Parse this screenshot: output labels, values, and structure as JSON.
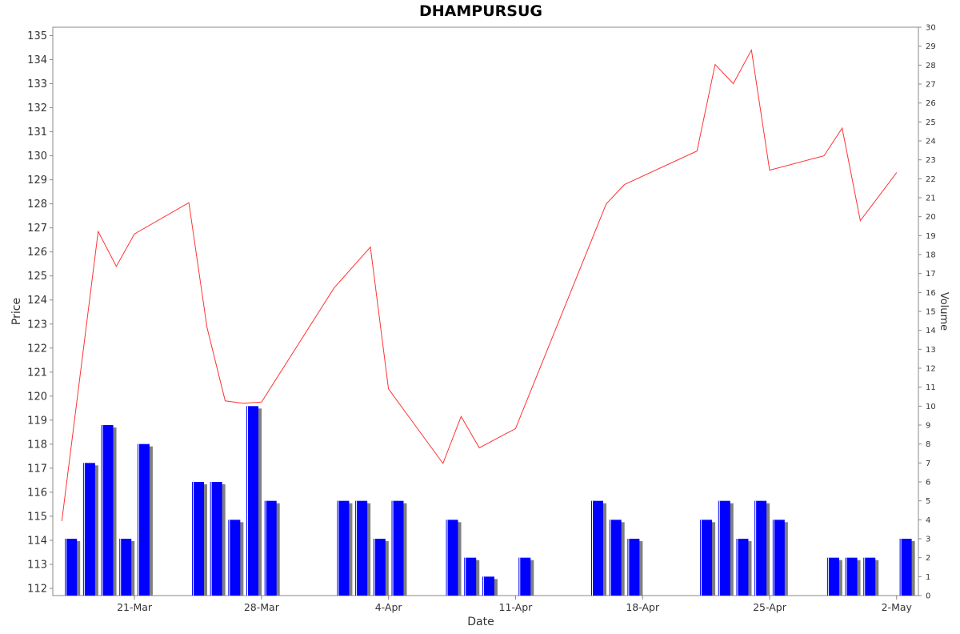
{
  "chart_data": {
    "type": "line",
    "title": "DHAMPURSUG",
    "xlabel": "Date",
    "ylabel": "Price",
    "y2label": "Volume",
    "ylim": [
      111.7,
      135.35
    ],
    "y2lim": [
      0,
      30
    ],
    "y_ticks": [
      112,
      113,
      114,
      115,
      116,
      117,
      118,
      119,
      120,
      121,
      122,
      123,
      124,
      125,
      126,
      127,
      128,
      129,
      130,
      131,
      132,
      133,
      134,
      135
    ],
    "y2_ticks": [
      0,
      1,
      2,
      3,
      4,
      5,
      6,
      7,
      8,
      9,
      10,
      11,
      12,
      13,
      14,
      15,
      16,
      17,
      18,
      19,
      20,
      21,
      22,
      23,
      24,
      25,
      26,
      27,
      28,
      29,
      30
    ],
    "x_tick_labels": [
      {
        "label": "21-Mar",
        "day": 21
      },
      {
        "label": "28-Mar",
        "day": 28
      },
      {
        "label": "4-Apr",
        "day": 35
      },
      {
        "label": "11-Apr",
        "day": 42
      },
      {
        "label": "18-Apr",
        "day": 49
      },
      {
        "label": "25-Apr",
        "day": 56
      },
      {
        "label": "2-May",
        "day": 63
      }
    ],
    "xlim_days": [
      16.5,
      64.2
    ],
    "grid": false,
    "colors": {
      "price_line": "#ff3333",
      "volume_bar": "#0000ff",
      "volume_shadow": "#808080",
      "axis": "#888888",
      "plot_border": "#888888"
    },
    "series": [
      {
        "kind": "price",
        "axis": "left",
        "points": [
          {
            "day": 17,
            "date": "17-Mar",
            "value": 114.8
          },
          {
            "day": 19,
            "date": "19-Mar",
            "value": 126.85
          },
          {
            "day": 20,
            "date": "20-Mar",
            "value": 125.4
          },
          {
            "day": 21,
            "date": "21-Mar",
            "value": 126.75
          },
          {
            "day": 24,
            "date": "24-Mar",
            "value": 128.05
          },
          {
            "day": 25,
            "date": "25-Mar",
            "value": 122.85
          },
          {
            "day": 26,
            "date": "26-Mar",
            "value": 119.8
          },
          {
            "day": 27,
            "date": "27-Mar",
            "value": 119.7
          },
          {
            "day": 28,
            "date": "28-Mar",
            "value": 119.75
          },
          {
            "day": 32,
            "date": "1-Apr",
            "value": 124.5
          },
          {
            "day": 34,
            "date": "3-Apr",
            "value": 126.2
          },
          {
            "day": 35,
            "date": "4-Apr",
            "value": 120.3
          },
          {
            "day": 38,
            "date": "7-Apr",
            "value": 117.2
          },
          {
            "day": 39,
            "date": "8-Apr",
            "value": 119.15
          },
          {
            "day": 40,
            "date": "9-Apr",
            "value": 117.85
          },
          {
            "day": 42,
            "date": "11-Apr",
            "value": 118.65
          },
          {
            "day": 47,
            "date": "16-Apr",
            "value": 128.0
          },
          {
            "day": 48,
            "date": "17-Apr",
            "value": 128.8
          },
          {
            "day": 52,
            "date": "21-Apr",
            "value": 130.2
          },
          {
            "day": 53,
            "date": "22-Apr",
            "value": 133.8
          },
          {
            "day": 54,
            "date": "23-Apr",
            "value": 133.0
          },
          {
            "day": 55,
            "date": "24-Apr",
            "value": 134.4
          },
          {
            "day": 56,
            "date": "25-Apr",
            "value": 129.4
          },
          {
            "day": 59,
            "date": "28-Apr",
            "value": 130.0
          },
          {
            "day": 60,
            "date": "29-Apr",
            "value": 131.15
          },
          {
            "day": 61,
            "date": "30-Apr",
            "value": 127.3
          },
          {
            "day": 63,
            "date": "2-May",
            "value": 129.3
          }
        ]
      },
      {
        "kind": "volume",
        "axis": "right",
        "bars": [
          {
            "day": 17.5,
            "value": 3
          },
          {
            "day": 18.5,
            "value": 7
          },
          {
            "day": 19.5,
            "value": 9
          },
          {
            "day": 20.5,
            "value": 3
          },
          {
            "day": 21.5,
            "value": 8
          },
          {
            "day": 24.5,
            "value": 6
          },
          {
            "day": 25.5,
            "value": 6
          },
          {
            "day": 26.5,
            "value": 4
          },
          {
            "day": 27.5,
            "value": 10
          },
          {
            "day": 28.5,
            "value": 5
          },
          {
            "day": 32.5,
            "value": 5
          },
          {
            "day": 33.5,
            "value": 5
          },
          {
            "day": 34.5,
            "value": 3
          },
          {
            "day": 35.5,
            "value": 5
          },
          {
            "day": 38.5,
            "value": 4
          },
          {
            "day": 39.5,
            "value": 2
          },
          {
            "day": 40.5,
            "value": 1
          },
          {
            "day": 42.5,
            "value": 2
          },
          {
            "day": 46.5,
            "value": 5
          },
          {
            "day": 47.5,
            "value": 4
          },
          {
            "day": 48.5,
            "value": 3
          },
          {
            "day": 52.5,
            "value": 4
          },
          {
            "day": 53.5,
            "value": 5
          },
          {
            "day": 54.5,
            "value": 3
          },
          {
            "day": 55.5,
            "value": 5
          },
          {
            "day": 56.5,
            "value": 4
          },
          {
            "day": 59.5,
            "value": 2
          },
          {
            "day": 60.5,
            "value": 2
          },
          {
            "day": 61.5,
            "value": 2
          },
          {
            "day": 63.5,
            "value": 3
          }
        ]
      }
    ]
  }
}
